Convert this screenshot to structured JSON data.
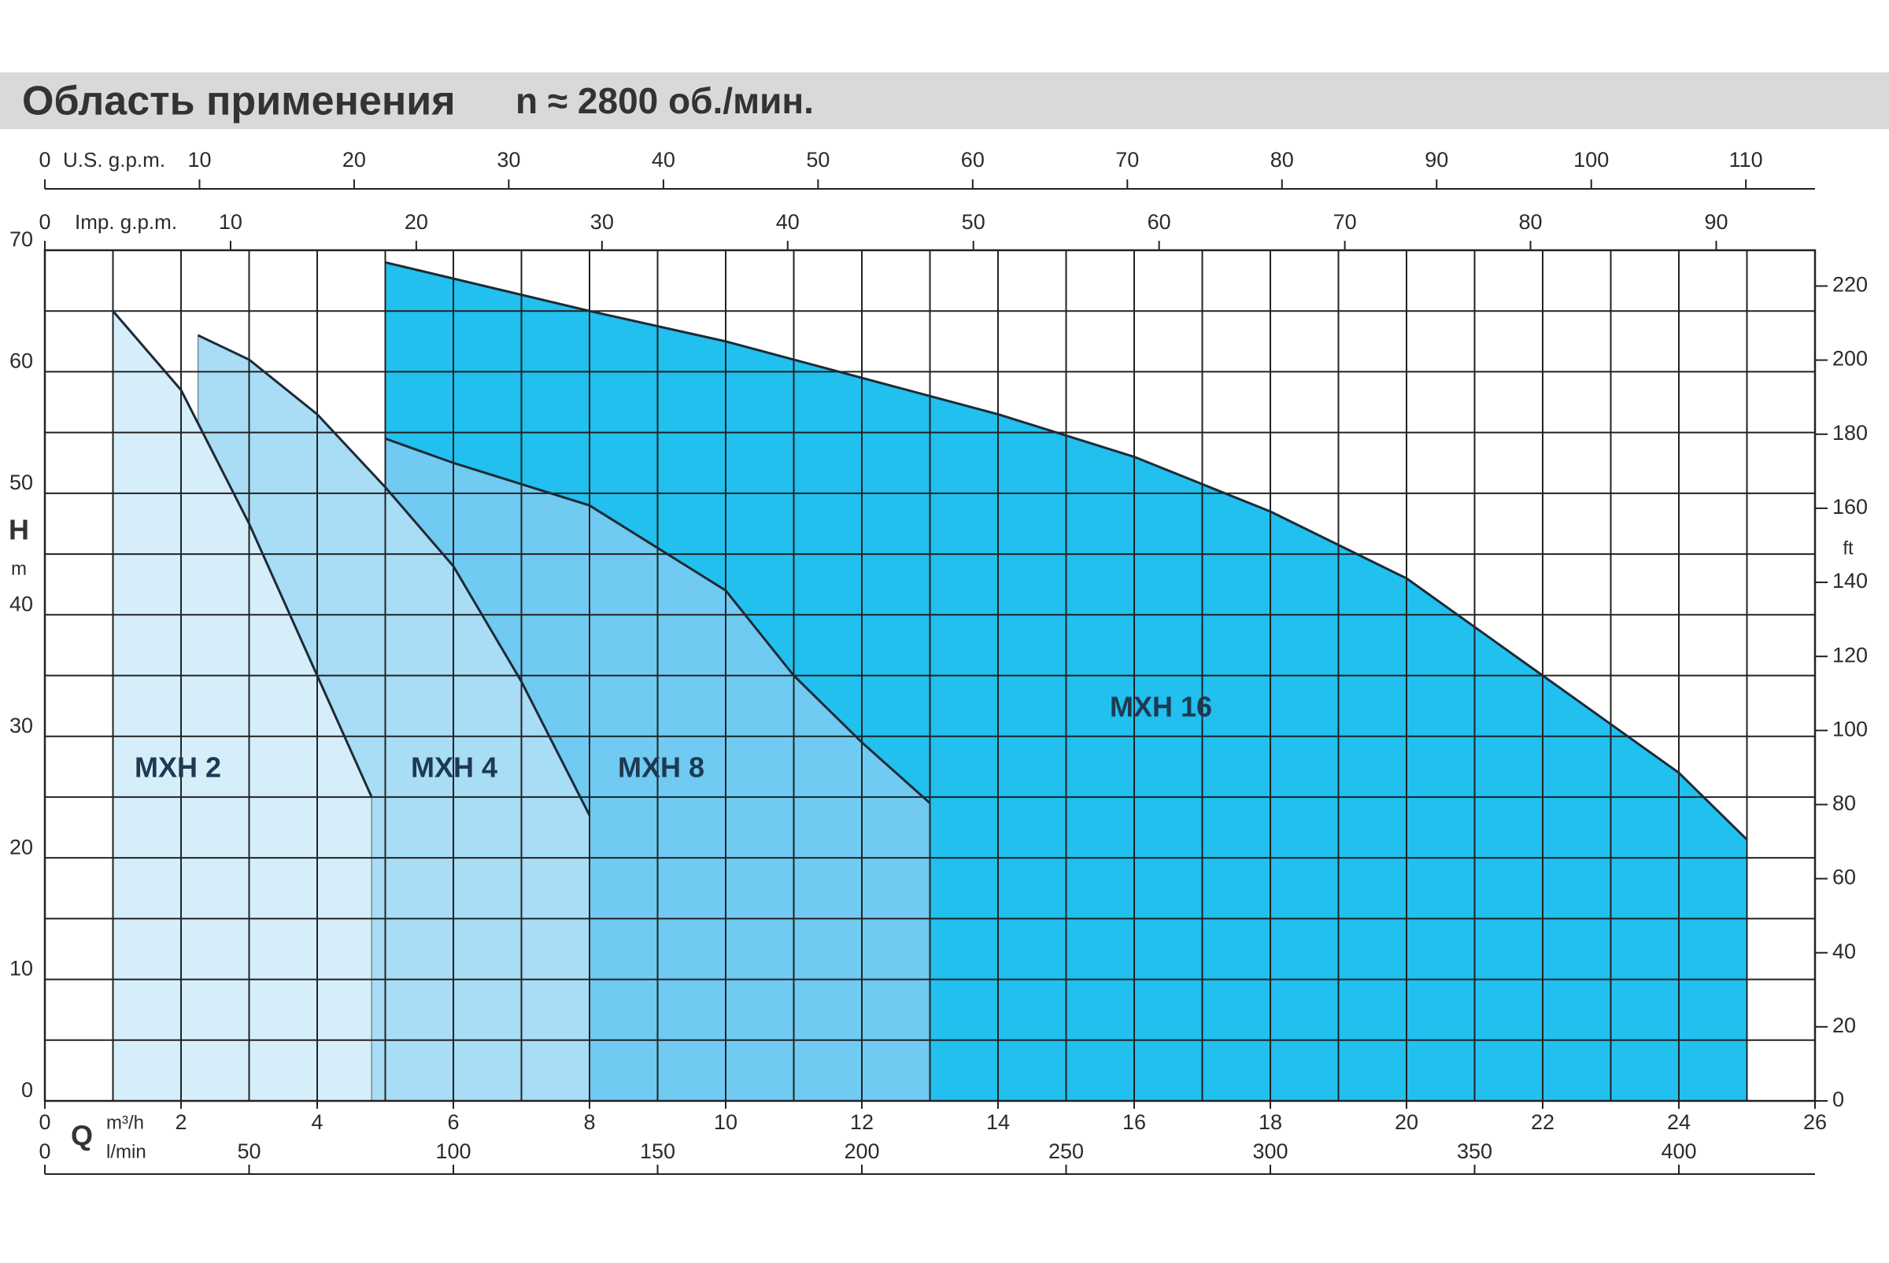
{
  "chart_data": {
    "type": "area",
    "title": "Область применения",
    "subtitle": "n ≈ 2800 об./мин.",
    "x_label": "Q",
    "x_unit": "m³/h",
    "y_label": "H",
    "y_unit": "m",
    "y2_label": "ft",
    "xlim": [
      0,
      26
    ],
    "xticks": [
      0,
      2,
      4,
      6,
      8,
      10,
      12,
      14,
      16,
      18,
      20,
      22,
      24,
      26
    ],
    "xminorticks": [
      1,
      3,
      5,
      7,
      9,
      11,
      13,
      15,
      17,
      19,
      21,
      23,
      25
    ],
    "ylim": [
      0,
      70
    ],
    "yticks": [
      0,
      10,
      20,
      30,
      40,
      50,
      60,
      70
    ],
    "yminorticks": [
      5,
      15,
      25,
      35,
      45,
      55,
      65
    ],
    "y2lim": [
      0,
      229.66
    ],
    "y2ticks": [
      0,
      20,
      40,
      60,
      80,
      100,
      120,
      140,
      160,
      180,
      200,
      220
    ],
    "grid": true,
    "top_axes": [
      {
        "label": "U.S. g.p.m.",
        "lim": [
          0,
          114.47
        ],
        "ticks": [
          0,
          10,
          20,
          30,
          40,
          50,
          60,
          70,
          80,
          90,
          100,
          110
        ]
      },
      {
        "label": "Imp. g.p.m.",
        "lim": [
          0,
          95.32
        ],
        "ticks": [
          0,
          10,
          20,
          30,
          40,
          50,
          60,
          70,
          80,
          90
        ]
      }
    ],
    "bottom_axis": {
      "label": "l/min",
      "lim": [
        0,
        433.33
      ],
      "ticks": [
        0,
        50,
        100,
        150,
        200,
        250,
        300,
        350,
        400
      ]
    },
    "series": [
      {
        "name": "MXH 2",
        "color": "#d6eefa",
        "x": [
          1,
          2,
          3,
          4,
          4.8
        ],
        "values": [
          65,
          58.5,
          47.5,
          35,
          25
        ]
      },
      {
        "name": "MXH 4",
        "color": "#a9dcf5",
        "x": [
          2.25,
          3,
          4,
          5,
          6,
          7,
          8
        ],
        "values": [
          63,
          61,
          56.5,
          50.5,
          44,
          34.5,
          23.5
        ]
      },
      {
        "name": "MXH 8",
        "color": "#70caf2",
        "x": [
          5,
          6,
          8,
          10,
          11,
          12,
          13
        ],
        "values": [
          54.5,
          52.5,
          49,
          42,
          35,
          29.5,
          24.5
        ]
      },
      {
        "name": "MXH 16",
        "color": "#21c0ee",
        "x": [
          5,
          8,
          10,
          12,
          14,
          16,
          18,
          20,
          22,
          24,
          25
        ],
        "values": [
          69,
          65,
          62.5,
          59.5,
          56.5,
          53,
          48.5,
          43,
          35,
          27,
          21.5
        ]
      }
    ]
  }
}
